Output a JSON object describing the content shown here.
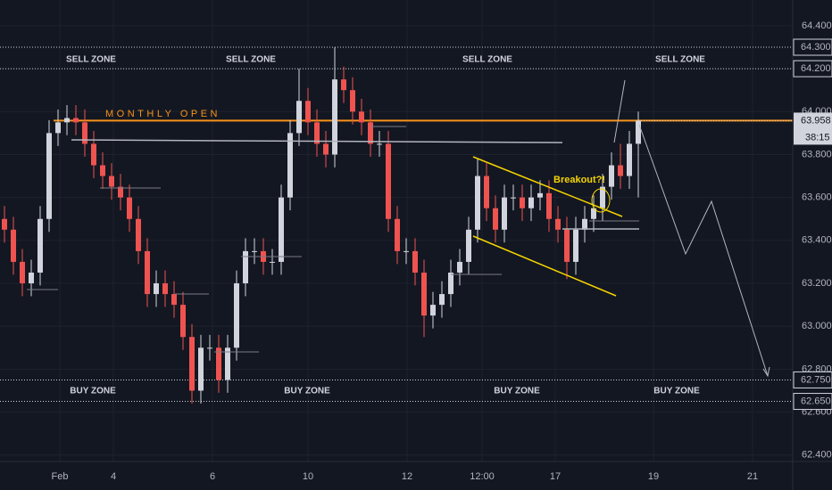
{
  "chart_data": {
    "type": "candlestick",
    "x": [
      0,
      1,
      2,
      3,
      4,
      5,
      6,
      7,
      8,
      9,
      10,
      11,
      12,
      13,
      14,
      15,
      16,
      17,
      18,
      19,
      20,
      21,
      22,
      23,
      24,
      25,
      26,
      27,
      28,
      29,
      30,
      31,
      32,
      33,
      34,
      35,
      36,
      37,
      38,
      39,
      40,
      41,
      42,
      43,
      44,
      45,
      46,
      47,
      48,
      49,
      50,
      51,
      52,
      53,
      54,
      55,
      56,
      57,
      58,
      59,
      60,
      61,
      62,
      63,
      64,
      65,
      66,
      67,
      68,
      69,
      70,
      71
    ],
    "open": [
      63.5,
      63.45,
      63.3,
      63.2,
      63.25,
      63.5,
      63.9,
      63.95,
      63.97,
      63.95,
      63.85,
      63.75,
      63.7,
      63.65,
      63.6,
      63.5,
      63.35,
      63.15,
      63.2,
      63.15,
      63.1,
      62.95,
      62.7,
      62.9,
      62.9,
      62.75,
      62.9,
      63.2,
      63.35,
      63.35,
      63.3,
      63.3,
      63.6,
      63.9,
      64.05,
      63.95,
      63.85,
      63.8,
      64.15,
      64.1,
      64.0,
      63.95,
      63.85,
      63.85,
      63.5,
      63.35,
      63.35,
      63.25,
      63.05,
      63.1,
      63.15,
      63.25,
      63.3,
      63.45,
      63.7,
      63.55,
      63.45,
      63.6,
      63.6,
      63.55,
      63.6,
      63.62,
      63.5,
      63.45,
      63.3,
      63.45,
      63.5,
      63.55,
      63.65,
      63.75,
      63.7,
      63.85
    ],
    "high": [
      63.56,
      63.51,
      63.36,
      63.31,
      63.56,
      63.96,
      64.01,
      64.03,
      64.03,
      64.01,
      63.91,
      63.81,
      63.76,
      63.71,
      63.66,
      63.56,
      63.41,
      63.26,
      63.26,
      63.21,
      63.16,
      63.01,
      62.96,
      62.96,
      62.96,
      62.96,
      63.26,
      63.41,
      63.41,
      63.41,
      63.36,
      63.66,
      63.96,
      64.2,
      64.11,
      64.01,
      63.91,
      64.3,
      64.21,
      64.16,
      64.06,
      64.01,
      63.91,
      63.91,
      63.56,
      63.41,
      63.41,
      63.31,
      63.16,
      63.21,
      63.31,
      63.36,
      63.51,
      63.78,
      63.76,
      63.61,
      63.66,
      63.66,
      63.66,
      63.66,
      63.68,
      63.68,
      63.56,
      63.51,
      63.51,
      63.56,
      63.61,
      63.71,
      63.81,
      63.85,
      63.91,
      64.0
    ],
    "low": [
      63.39,
      63.24,
      63.14,
      63.14,
      63.19,
      63.44,
      63.84,
      63.89,
      63.89,
      63.79,
      63.69,
      63.64,
      63.59,
      63.54,
      63.44,
      63.29,
      63.09,
      63.09,
      63.09,
      63.04,
      62.89,
      62.64,
      62.64,
      62.84,
      62.69,
      62.69,
      62.84,
      63.14,
      63.29,
      63.24,
      63.24,
      63.24,
      63.54,
      63.84,
      63.89,
      63.79,
      63.74,
      63.74,
      64.04,
      63.94,
      63.89,
      63.79,
      63.79,
      63.44,
      63.29,
      63.29,
      63.19,
      62.95,
      62.99,
      63.04,
      63.09,
      63.19,
      63.24,
      63.39,
      63.49,
      63.39,
      63.39,
      63.54,
      63.49,
      63.49,
      63.54,
      63.44,
      63.39,
      63.22,
      63.24,
      63.39,
      63.44,
      63.49,
      63.59,
      63.64,
      63.64,
      63.6
    ],
    "close": [
      63.45,
      63.3,
      63.2,
      63.25,
      63.5,
      63.9,
      63.95,
      63.97,
      63.95,
      63.85,
      63.75,
      63.7,
      63.65,
      63.6,
      63.5,
      63.35,
      63.15,
      63.2,
      63.15,
      63.1,
      62.95,
      62.7,
      62.9,
      62.9,
      62.75,
      62.9,
      63.2,
      63.35,
      63.35,
      63.3,
      63.3,
      63.6,
      63.9,
      64.05,
      63.95,
      63.85,
      63.8,
      64.15,
      64.1,
      64.0,
      63.95,
      63.85,
      63.85,
      63.5,
      63.35,
      63.35,
      63.25,
      63.05,
      63.1,
      63.15,
      63.25,
      63.3,
      63.45,
      63.7,
      63.55,
      63.45,
      63.6,
      63.6,
      63.55,
      63.6,
      63.62,
      63.5,
      63.45,
      63.3,
      63.45,
      63.5,
      63.55,
      63.65,
      63.75,
      63.7,
      63.85,
      63.958
    ],
    "up_color": "#d1d4dc",
    "down_color": "#ef5350",
    "xlim": [
      -0.5,
      88.3
    ],
    "xticks": [
      {
        "value": 6.2,
        "label": "Feb"
      },
      {
        "value": 12.2,
        "label": "4"
      },
      {
        "value": 23.3,
        "label": "6"
      },
      {
        "value": 34,
        "label": "10"
      },
      {
        "value": 45.1,
        "label": "12"
      },
      {
        "value": 53.5,
        "label": "12:00"
      },
      {
        "value": 61.7,
        "label": "17"
      },
      {
        "value": 72.7,
        "label": "19"
      },
      {
        "value": 83.8,
        "label": "21"
      }
    ],
    "ylim": [
      62.37,
      64.52
    ],
    "yticks": [
      {
        "value": 62.4,
        "label": "62.400"
      },
      {
        "value": 62.6,
        "label": "62.600"
      },
      {
        "value": 62.8,
        "label": "62.800"
      },
      {
        "value": 63.0,
        "label": "63.000"
      },
      {
        "value": 63.2,
        "label": "63.200"
      },
      {
        "value": 63.4,
        "label": "63.400"
      },
      {
        "value": 63.6,
        "label": "63.600"
      },
      {
        "value": 63.8,
        "label": "63.800"
      },
      {
        "value": 64.0,
        "label": "64.000"
      },
      {
        "value": 64.2,
        "label": "64.200"
      },
      {
        "value": 64.4,
        "label": "64.400"
      }
    ],
    "grid": true,
    "zone_lines": [
      {
        "value": 64.3,
        "label": "64.300"
      },
      {
        "value": 64.2,
        "label": "64.200"
      },
      {
        "value": 62.75,
        "label": "62.750"
      },
      {
        "value": 62.65,
        "label": "62.650"
      }
    ],
    "monthly_open": 63.958,
    "countdown": "38:15",
    "annotations": [
      "SELL ZONE",
      "SELL ZONE",
      "SELL ZONE",
      "SELL ZONE",
      "BUY ZONE",
      "BUY ZONE",
      "BUY ZONE",
      "BUY ZONE",
      "MONTHLY OPEN",
      "Breakout?!"
    ]
  }
}
